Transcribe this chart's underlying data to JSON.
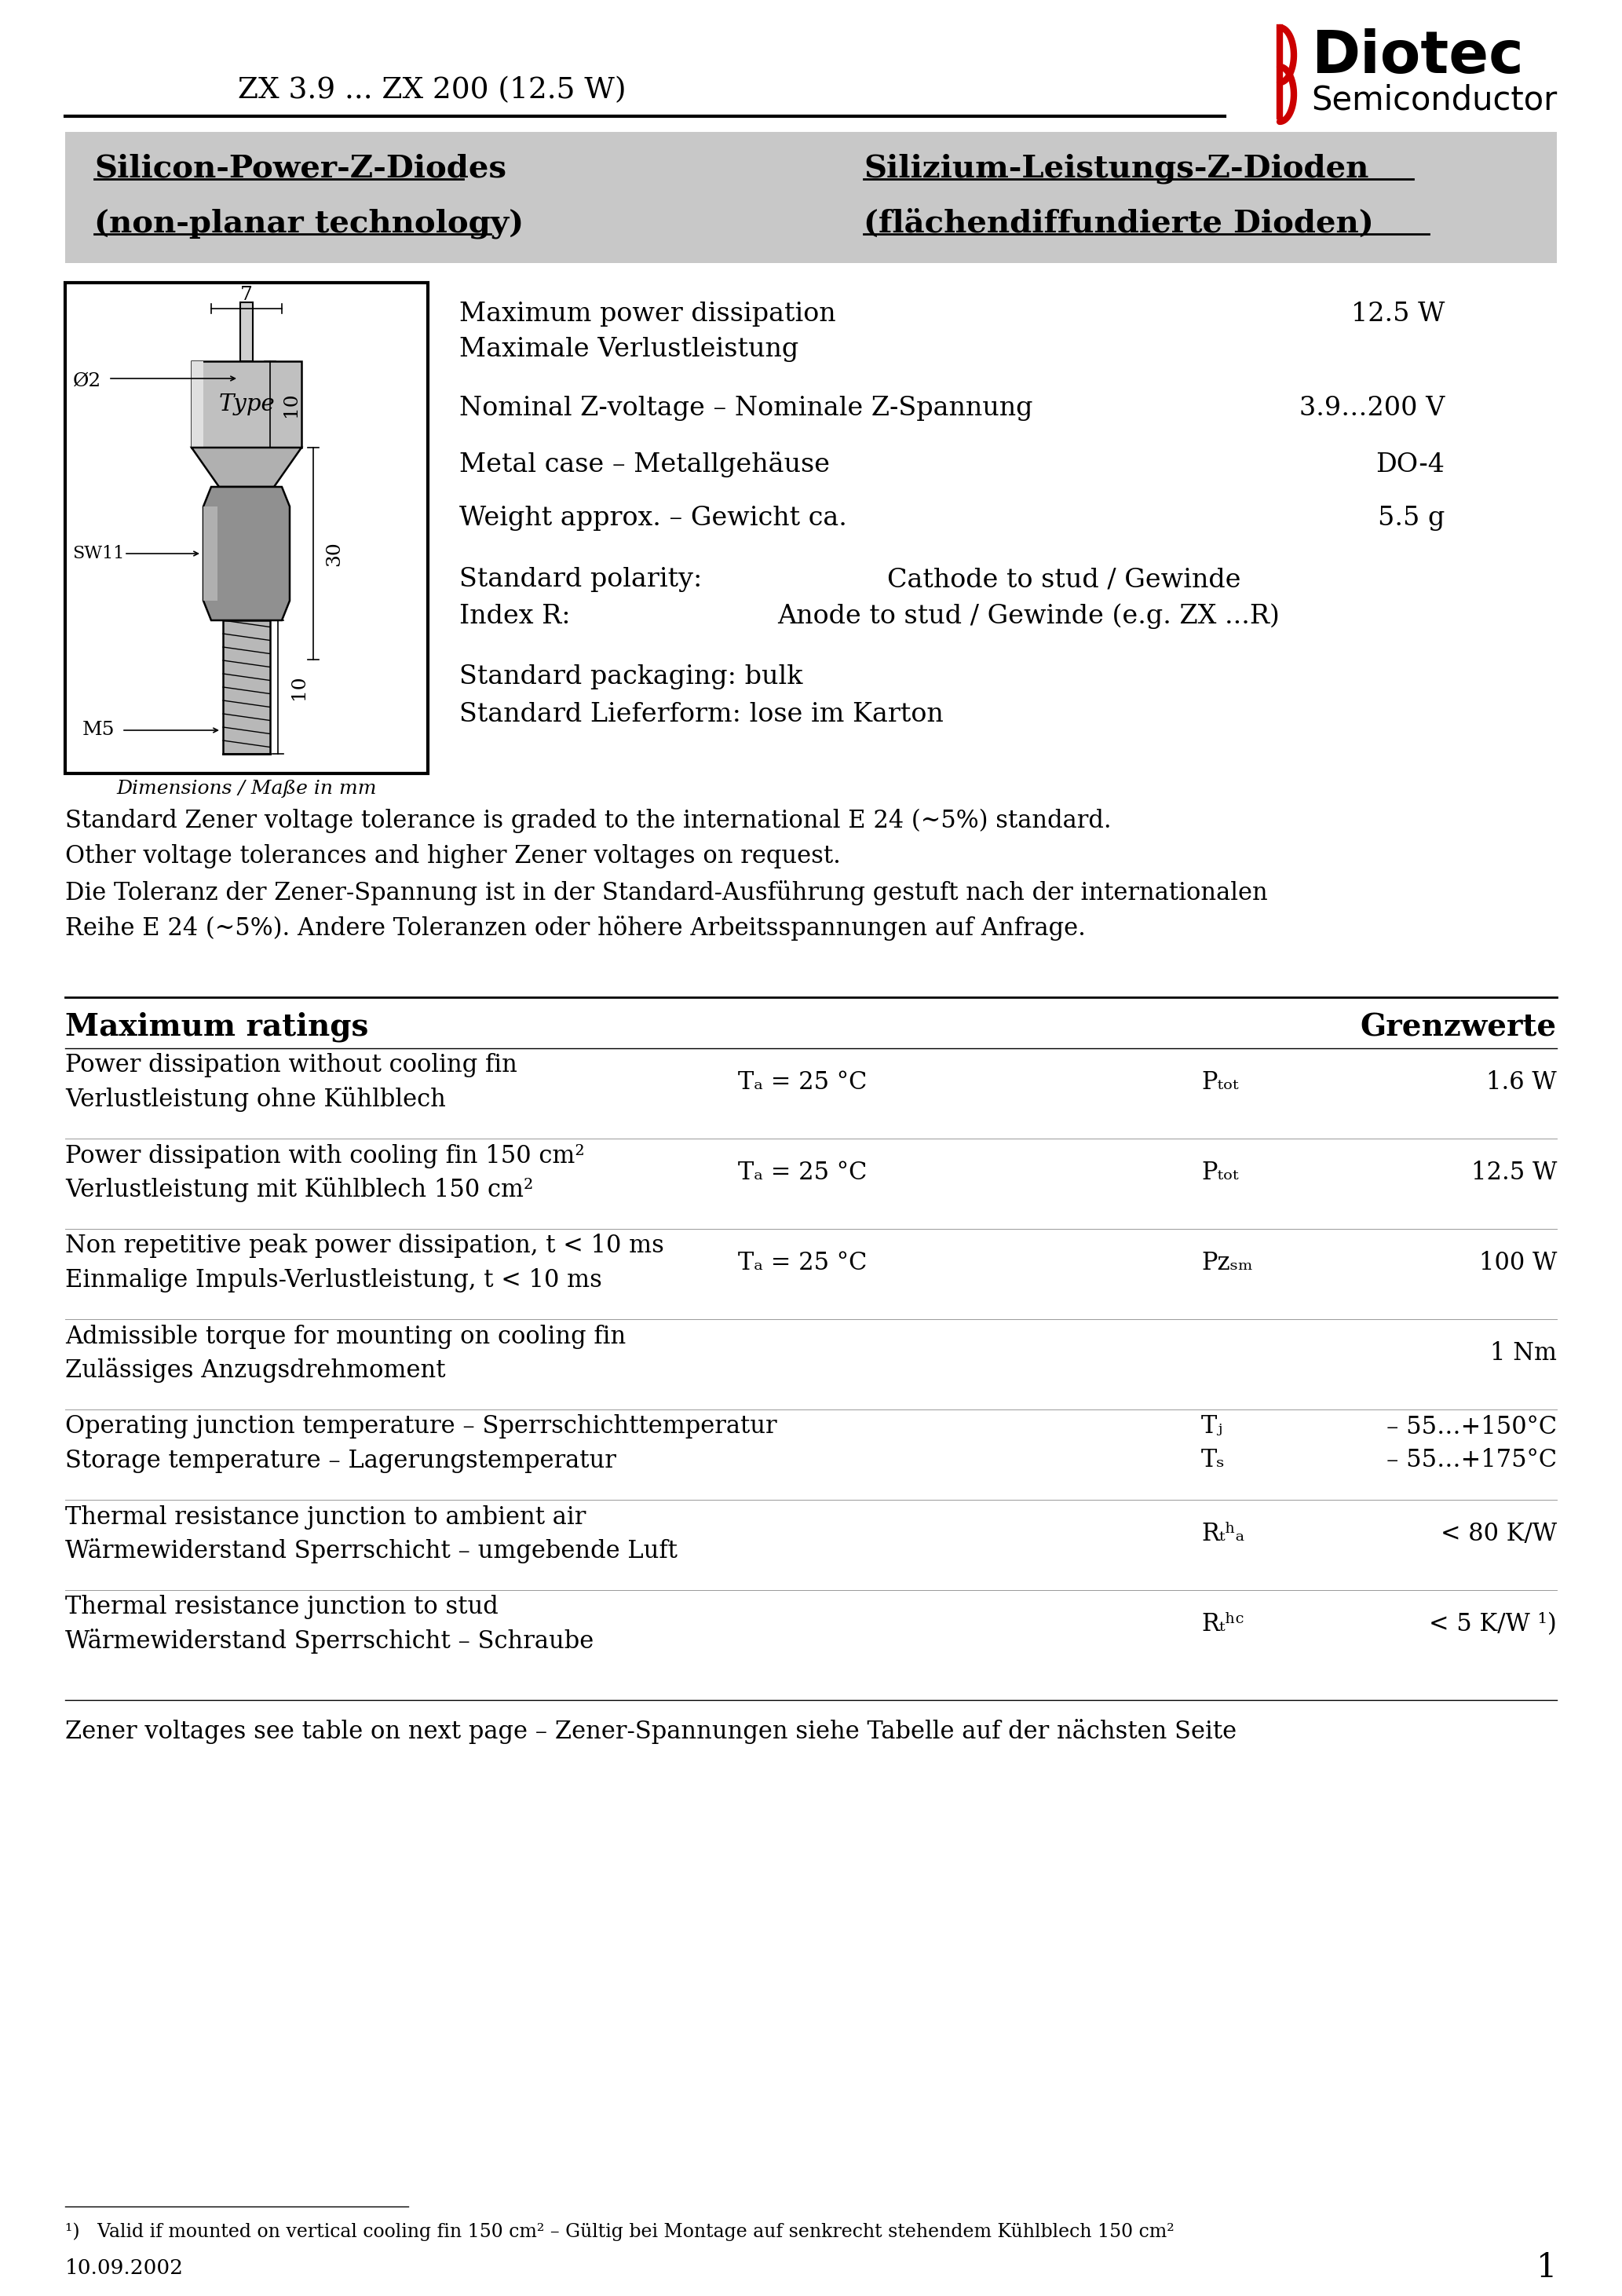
{
  "bg_color": "#ffffff",
  "header_line_color": "#000000",
  "title_text": "ZX 3.9 ... ZX 200 (12.5 W)",
  "logo_diotec": "Diotec",
  "logo_semi": "Semiconductor",
  "logo_color": "#cc0000",
  "subtitle_bg": "#c8c8c8",
  "subtitle_left1": "Silicon-Power-Z-Diodes",
  "subtitle_left2": "(non-planar technology)",
  "subtitle_right1": "Silizium-Leistungs-Z-Dioden",
  "subtitle_right2": "(flächendiffundierte Dioden)",
  "note1": "Standard Zener voltage tolerance is graded to the international E 24 (~5%) standard.",
  "note2": "Other voltage tolerances and higher Zener voltages on request.",
  "note3": "Die Toleranz der Zener-Spannung ist in der Standard-Ausführung gestuft nach der internationalen",
  "note4": "Reihe E 24 (~5%). Andere Toleranzen oder höhere Arbeitsspannungen auf Anfrage.",
  "max_ratings_left": "Maximum ratings",
  "max_ratings_right": "Grenzwerte",
  "zener_note": "Zener voltages see table on next page – Zener-Spannungen siehe Tabelle auf der nächsten Seite",
  "footnote": "¹)   Valid if mounted on vertical cooling fin 150 cm² – Gültig bei Montage auf senkrecht stehendem Kühlblech 150 cm²",
  "date": "10.09.2002",
  "page": "1"
}
